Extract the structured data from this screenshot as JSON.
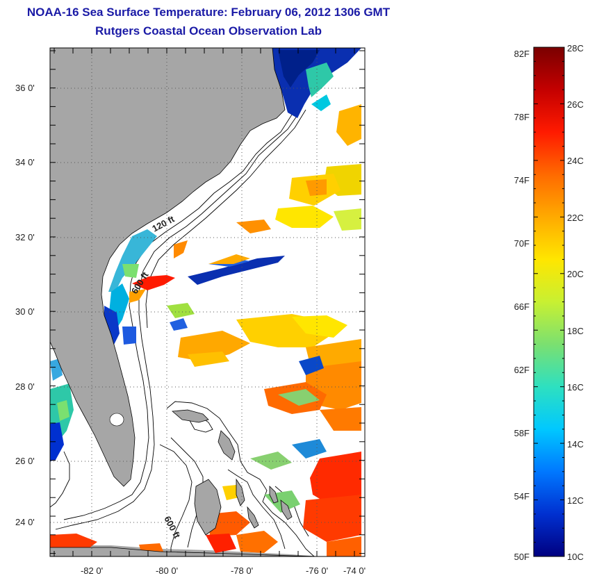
{
  "header": {
    "title": "NOAA-16 Sea Surface Temperature:  February 06, 2012 1306 GMT",
    "subtitle": "Rutgers Coastal Ocean Observation Lab"
  },
  "map": {
    "lat_ticks": [
      "36 0'",
      "34 0'",
      "32 0'",
      "30 0'",
      "28 0'",
      "26 0'",
      "24 0'"
    ],
    "lon_ticks": [
      "-82 0'",
      "-80 0'",
      "-78 0'",
      "-76 0'",
      "-74 0'"
    ],
    "contour_labels": [
      "120 ft",
      "600 ft",
      "600 ft"
    ],
    "land_color": "#a6a6a6"
  },
  "colorbar": {
    "fahrenheit": [
      "82F",
      "78F",
      "74F",
      "70F",
      "66F",
      "62F",
      "58F",
      "54F",
      "50F"
    ],
    "celsius": [
      "28C",
      "26C",
      "24C",
      "22C",
      "20C",
      "18C",
      "16C",
      "14C",
      "12C",
      "10C"
    ],
    "stops": [
      "#7a0000",
      "#c40000",
      "#ff1a00",
      "#ff6a00",
      "#ffaa00",
      "#ffe600",
      "#c8f032",
      "#7be070",
      "#2ee0c0",
      "#00c8ff",
      "#0078ff",
      "#0030d0",
      "#000080"
    ]
  }
}
